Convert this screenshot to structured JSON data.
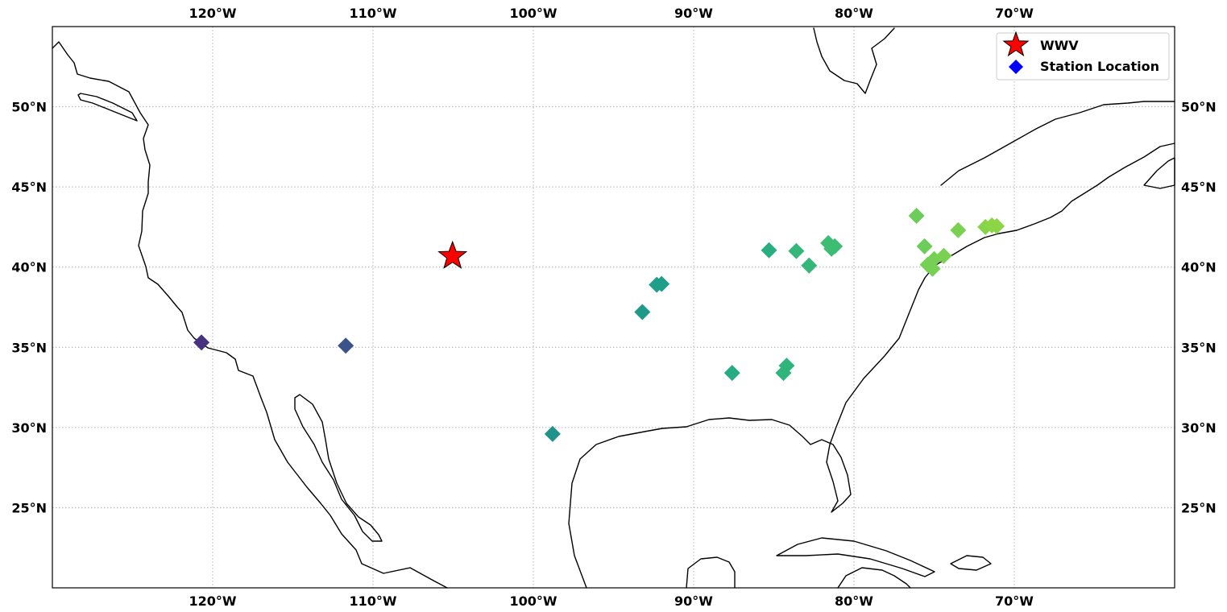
{
  "map": {
    "extent": {
      "lon": [
        -130,
        -60
      ],
      "lat": [
        20,
        55
      ]
    },
    "lon_ticks": [
      {
        "value": -120,
        "label": "120°W"
      },
      {
        "value": -110,
        "label": "110°W"
      },
      {
        "value": -100,
        "label": "100°W"
      },
      {
        "value": -90,
        "label": "90°W"
      },
      {
        "value": -80,
        "label": "80°W"
      },
      {
        "value": -70,
        "label": "70°W"
      }
    ],
    "lat_ticks": [
      {
        "value": 25,
        "label": "25°N"
      },
      {
        "value": 30,
        "label": "30°N"
      },
      {
        "value": 35,
        "label": "35°N"
      },
      {
        "value": 40,
        "label": "40°N"
      },
      {
        "value": 45,
        "label": "45°N"
      },
      {
        "value": 50,
        "label": "50°N"
      }
    ],
    "grid": true,
    "legend": {
      "placement": "top-right",
      "entries": [
        {
          "label": "WWV",
          "marker": "star",
          "color": "#ff0000"
        },
        {
          "label": "Station Location",
          "marker": "diamond",
          "color": "#0000ff"
        }
      ]
    },
    "transmitter": {
      "label": "WWV",
      "lon": -105.04,
      "lat": 40.68,
      "color": "#ff0000"
    },
    "stations": [
      {
        "lon": -120.7,
        "lat": 35.3,
        "color": "#46327e"
      },
      {
        "lon": -111.7,
        "lat": 35.1,
        "color": "#3b528b"
      },
      {
        "lon": -98.8,
        "lat": 29.6,
        "color": "#21918c"
      },
      {
        "lon": -93.2,
        "lat": 37.2,
        "color": "#1f9a8a"
      },
      {
        "lon": -92.3,
        "lat": 38.9,
        "color": "#1f9e89"
      },
      {
        "lon": -92.0,
        "lat": 38.95,
        "color": "#1f9e89"
      },
      {
        "lon": -87.6,
        "lat": 33.4,
        "color": "#25ac82"
      },
      {
        "lon": -85.3,
        "lat": 41.05,
        "color": "#28ae80"
      },
      {
        "lon": -84.4,
        "lat": 33.4,
        "color": "#2fb47c"
      },
      {
        "lon": -84.2,
        "lat": 33.85,
        "color": "#2fb47c"
      },
      {
        "lon": -83.6,
        "lat": 41.0,
        "color": "#35b779"
      },
      {
        "lon": -82.8,
        "lat": 40.1,
        "color": "#35b779"
      },
      {
        "lon": -81.6,
        "lat": 41.5,
        "color": "#3dbc74"
      },
      {
        "lon": -81.2,
        "lat": 41.3,
        "color": "#3dbc74"
      },
      {
        "lon": -81.4,
        "lat": 41.15,
        "color": "#3dbc74"
      },
      {
        "lon": -76.1,
        "lat": 43.2,
        "color": "#6ccd5a"
      },
      {
        "lon": -75.6,
        "lat": 41.3,
        "color": "#6ccd5a"
      },
      {
        "lon": -75.4,
        "lat": 40.15,
        "color": "#75d054"
      },
      {
        "lon": -75.0,
        "lat": 40.5,
        "color": "#75d054"
      },
      {
        "lon": -75.1,
        "lat": 39.9,
        "color": "#75d054"
      },
      {
        "lon": -74.4,
        "lat": 40.7,
        "color": "#7ad151"
      },
      {
        "lon": -73.5,
        "lat": 42.3,
        "color": "#7ad151"
      },
      {
        "lon": -71.8,
        "lat": 42.5,
        "color": "#86d549"
      },
      {
        "lon": -71.4,
        "lat": 42.6,
        "color": "#8bd646"
      },
      {
        "lon": -71.1,
        "lat": 42.55,
        "color": "#8bd646"
      }
    ]
  }
}
